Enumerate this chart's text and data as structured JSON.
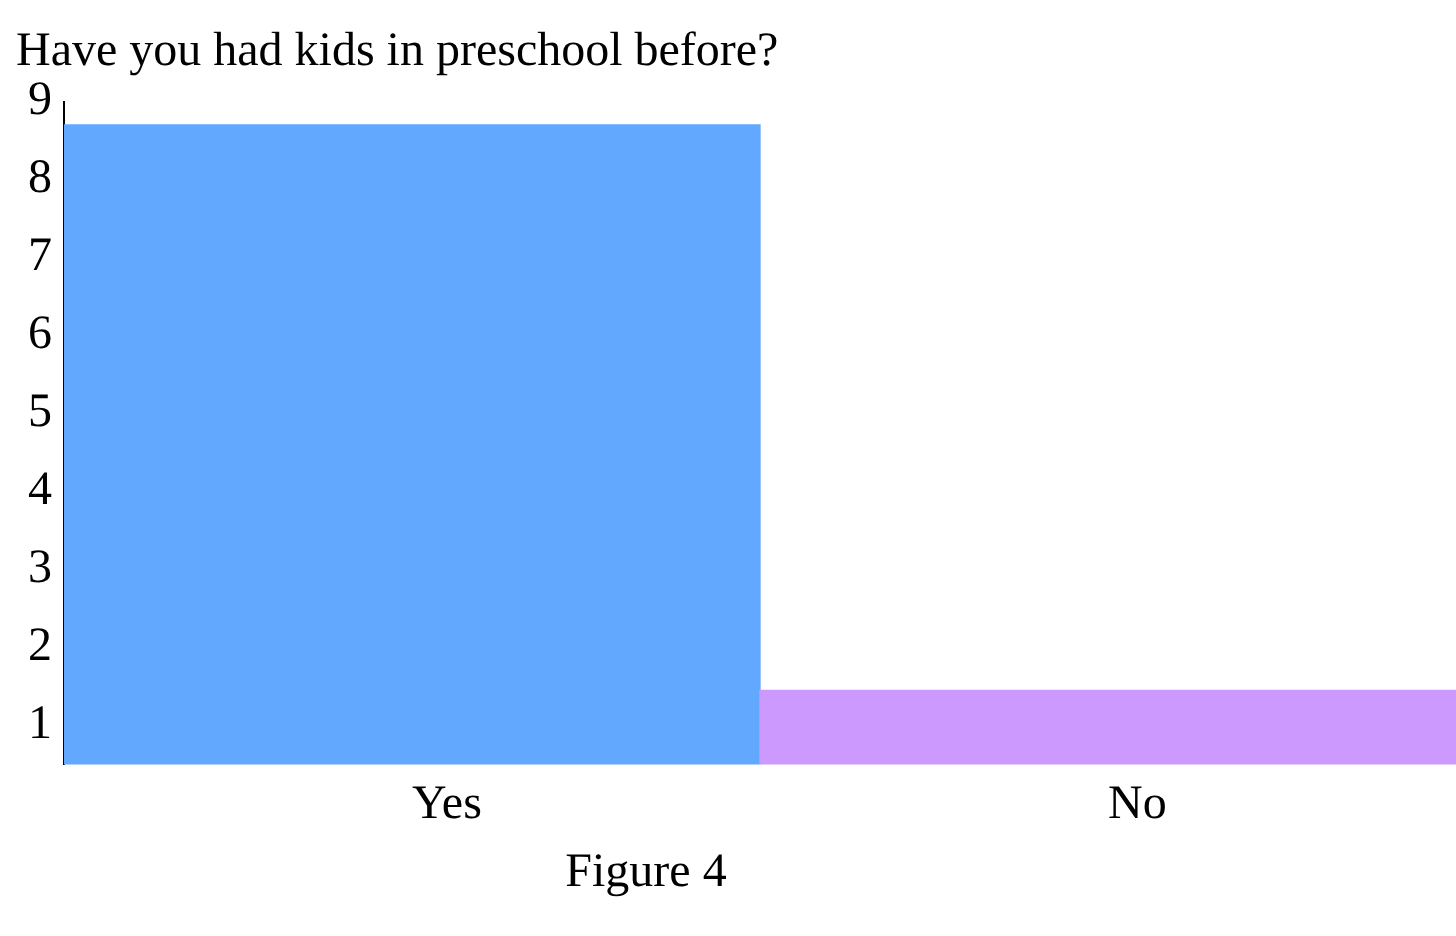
{
  "chart_data": {
    "type": "bar",
    "title": "Have you had kids in preschool before?",
    "categories": [
      "Yes",
      "No"
    ],
    "values": [
      8.7,
      1.45
    ],
    "colors": [
      "#62a8ff",
      "#cc99ff"
    ],
    "ylim": [
      0.5,
      9
    ],
    "yticks": [
      1,
      2,
      3,
      4,
      5,
      6,
      7,
      8,
      9
    ],
    "grid": false,
    "legend": false,
    "annotations": [
      "Figure 4"
    ]
  }
}
